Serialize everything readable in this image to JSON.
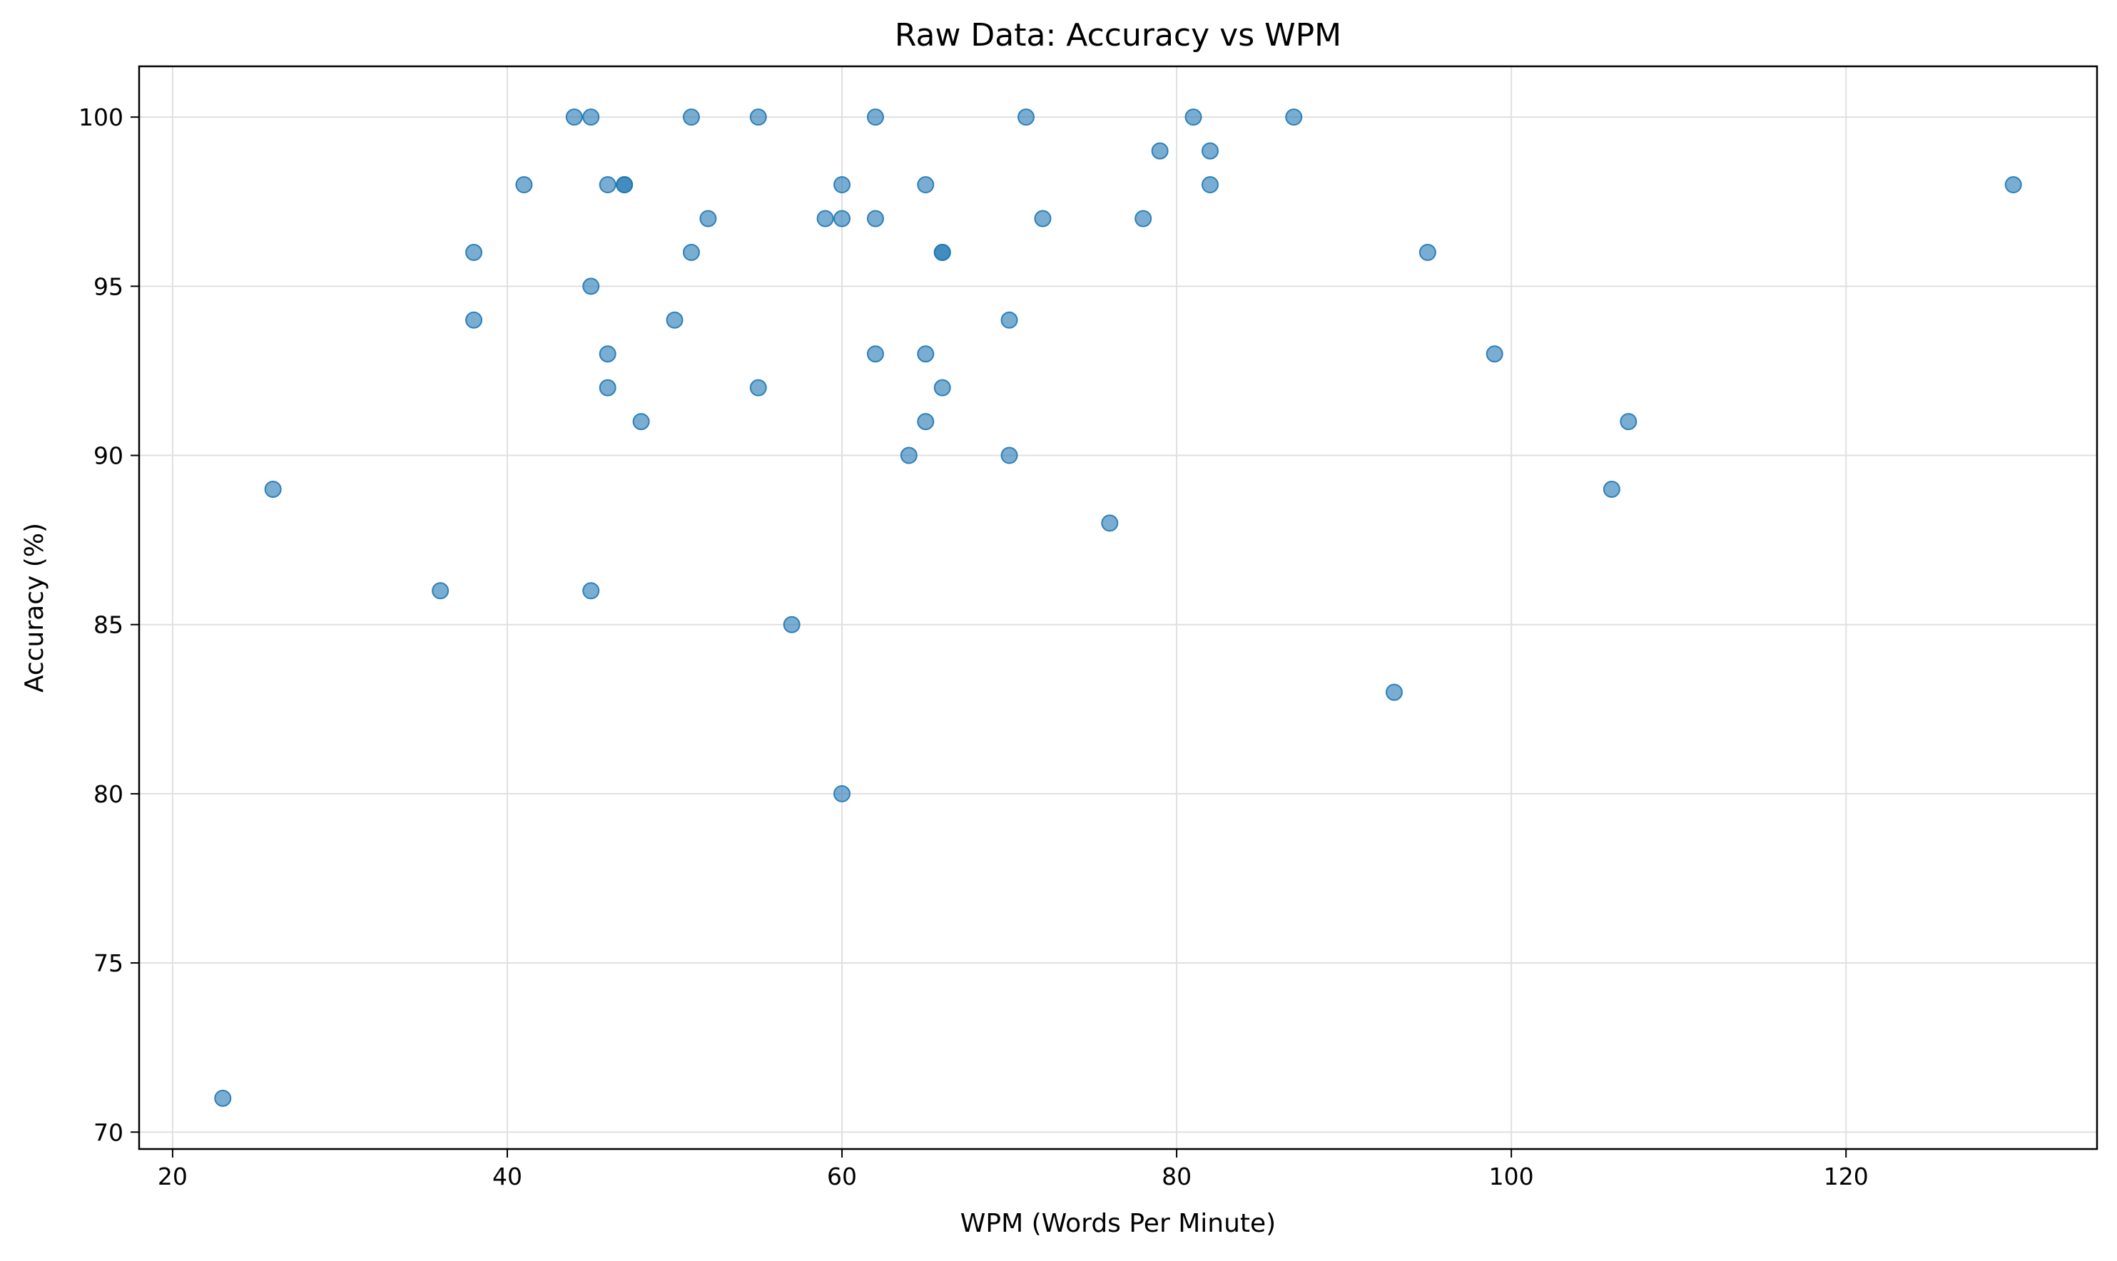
{
  "chart_data": {
    "type": "scatter",
    "title": "Raw Data: Accuracy vs WPM",
    "xlabel": "WPM (Words Per Minute)",
    "ylabel": "Accuracy (%)",
    "xlim": [
      18,
      135
    ],
    "ylim": [
      69.5,
      101.5
    ],
    "xticks": [
      20,
      40,
      60,
      80,
      100,
      120
    ],
    "yticks": [
      70,
      75,
      80,
      85,
      90,
      95,
      100
    ],
    "grid": true,
    "color": "#1f77b4",
    "points": [
      {
        "x": 23,
        "y": 71
      },
      {
        "x": 26,
        "y": 89
      },
      {
        "x": 36,
        "y": 86
      },
      {
        "x": 38,
        "y": 96
      },
      {
        "x": 38,
        "y": 94
      },
      {
        "x": 41,
        "y": 98
      },
      {
        "x": 44,
        "y": 100
      },
      {
        "x": 45,
        "y": 100
      },
      {
        "x": 45,
        "y": 95
      },
      {
        "x": 45,
        "y": 86
      },
      {
        "x": 46,
        "y": 98
      },
      {
        "x": 46,
        "y": 93
      },
      {
        "x": 46,
        "y": 92
      },
      {
        "x": 47,
        "y": 98
      },
      {
        "x": 47,
        "y": 98
      },
      {
        "x": 48,
        "y": 91
      },
      {
        "x": 50,
        "y": 94
      },
      {
        "x": 51,
        "y": 100
      },
      {
        "x": 51,
        "y": 96
      },
      {
        "x": 52,
        "y": 97
      },
      {
        "x": 55,
        "y": 100
      },
      {
        "x": 55,
        "y": 92
      },
      {
        "x": 57,
        "y": 85
      },
      {
        "x": 59,
        "y": 97
      },
      {
        "x": 60,
        "y": 98
      },
      {
        "x": 60,
        "y": 97
      },
      {
        "x": 60,
        "y": 80
      },
      {
        "x": 62,
        "y": 100
      },
      {
        "x": 62,
        "y": 97
      },
      {
        "x": 62,
        "y": 93
      },
      {
        "x": 64,
        "y": 90
      },
      {
        "x": 65,
        "y": 98
      },
      {
        "x": 65,
        "y": 93
      },
      {
        "x": 65,
        "y": 91
      },
      {
        "x": 66,
        "y": 96
      },
      {
        "x": 66,
        "y": 96
      },
      {
        "x": 66,
        "y": 92
      },
      {
        "x": 70,
        "y": 94
      },
      {
        "x": 70,
        "y": 90
      },
      {
        "x": 71,
        "y": 100
      },
      {
        "x": 72,
        "y": 97
      },
      {
        "x": 76,
        "y": 88
      },
      {
        "x": 78,
        "y": 97
      },
      {
        "x": 79,
        "y": 99
      },
      {
        "x": 81,
        "y": 100
      },
      {
        "x": 82,
        "y": 99
      },
      {
        "x": 82,
        "y": 98
      },
      {
        "x": 87,
        "y": 100
      },
      {
        "x": 93,
        "y": 83
      },
      {
        "x": 95,
        "y": 96
      },
      {
        "x": 99,
        "y": 93
      },
      {
        "x": 106,
        "y": 89
      },
      {
        "x": 107,
        "y": 91
      },
      {
        "x": 130,
        "y": 98
      }
    ]
  }
}
